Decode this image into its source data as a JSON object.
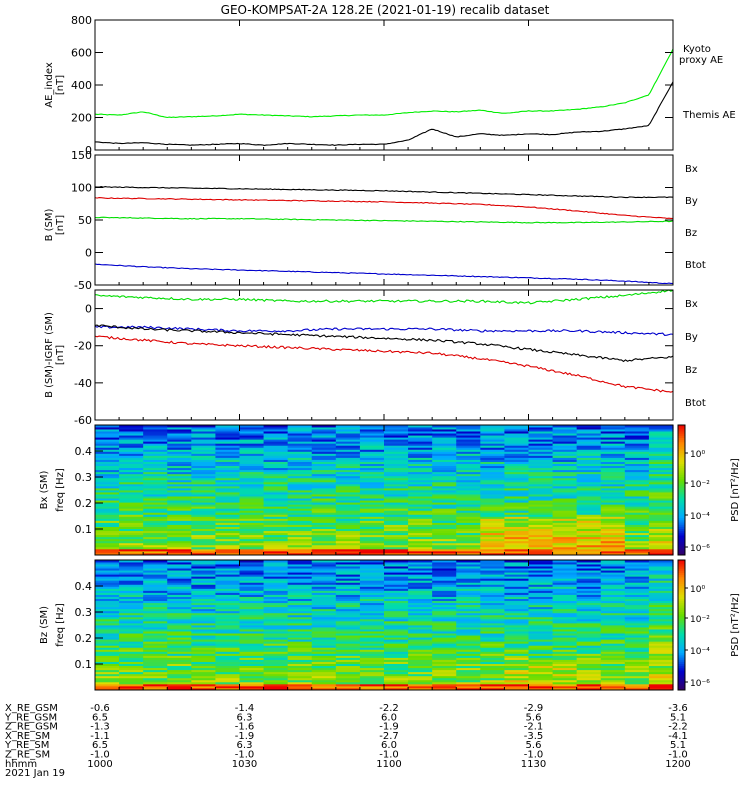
{
  "title": "GEO-KOMPSAT-2A 128.2E (2021-01-19) recalib dataset",
  "chart_data": [
    {
      "type": "line",
      "ylabel": [
        "AE_index",
        "[nT]"
      ],
      "ylim": [
        0,
        800
      ],
      "yticks": [
        "0",
        "200",
        "400",
        "600",
        "800"
      ],
      "x": [
        "1000",
        "1005",
        "1010",
        "1015",
        "1020",
        "1025",
        "1030",
        "1035",
        "1040",
        "1045",
        "1050",
        "1055",
        "1100",
        "1105",
        "1110",
        "1115",
        "1120",
        "1125",
        "1130",
        "1135",
        "1140",
        "1145",
        "1150",
        "1155",
        "1200"
      ],
      "series": [
        {
          "name": "Kyoto proxy AE",
          "color": "#00ee00",
          "values": [
            220,
            215,
            235,
            200,
            205,
            210,
            220,
            215,
            210,
            205,
            210,
            215,
            215,
            230,
            240,
            235,
            245,
            225,
            240,
            240,
            250,
            265,
            290,
            340,
            620
          ]
        },
        {
          "name": "Themis AE",
          "color": "#000000",
          "values": [
            50,
            40,
            45,
            35,
            30,
            35,
            40,
            30,
            40,
            35,
            30,
            35,
            35,
            60,
            130,
            80,
            100,
            90,
            100,
            95,
            110,
            115,
            130,
            150,
            420
          ]
        }
      ]
    },
    {
      "type": "line",
      "ylabel": [
        "B (SM)",
        "[nT]"
      ],
      "ylim": [
        -50,
        150
      ],
      "yticks": [
        "-50",
        "0",
        "50",
        "100",
        "150"
      ],
      "x": [
        "1000",
        "1010",
        "1020",
        "1030",
        "1040",
        "1050",
        "1100",
        "1110",
        "1120",
        "1130",
        "1140",
        "1150",
        "1200"
      ],
      "series": [
        {
          "name": "Bx",
          "color": "#0000cc",
          "values": [
            -18,
            -22,
            -25,
            -27,
            -29,
            -31,
            -33,
            -35,
            -37,
            -39,
            -41,
            -44,
            -48
          ]
        },
        {
          "name": "By",
          "color": "#00dd00",
          "values": [
            54,
            53,
            52,
            52,
            51,
            50,
            49,
            48,
            47,
            46,
            46,
            47,
            48
          ]
        },
        {
          "name": "Bz",
          "color": "#dd0000",
          "values": [
            84,
            83,
            82,
            81,
            80,
            79,
            78,
            76,
            74,
            70,
            64,
            57,
            52
          ]
        },
        {
          "name": "Btot",
          "color": "#000000",
          "values": [
            101,
            100,
            99,
            98,
            97,
            96,
            95,
            93,
            91,
            89,
            87,
            85,
            85
          ]
        }
      ]
    },
    {
      "type": "line",
      "ylabel": [
        "B (SM)-IGRF (SM)",
        "[nT]"
      ],
      "ylim": [
        -60,
        10
      ],
      "yticks": [
        "-60",
        "-40",
        "-20",
        "0"
      ],
      "x": [
        "1000",
        "1010",
        "1020",
        "1030",
        "1040",
        "1050",
        "1100",
        "1110",
        "1120",
        "1130",
        "1140",
        "1150",
        "1200"
      ],
      "series": [
        {
          "name": "Bx",
          "color": "#0000cc",
          "values": [
            -10,
            -10,
            -11,
            -12,
            -12,
            -11,
            -11,
            -11,
            -12,
            -12,
            -12,
            -13,
            -14
          ]
        },
        {
          "name": "By",
          "color": "#00dd00",
          "values": [
            7,
            6,
            5,
            5,
            4,
            4,
            4,
            4,
            4,
            3,
            5,
            7,
            10
          ]
        },
        {
          "name": "Bz",
          "color": "#dd0000",
          "values": [
            -15,
            -17,
            -19,
            -20,
            -21,
            -22,
            -23,
            -24,
            -27,
            -31,
            -36,
            -42,
            -45
          ]
        },
        {
          "name": "Btot",
          "color": "#000000",
          "values": [
            -9,
            -11,
            -12,
            -13,
            -14,
            -15,
            -16,
            -17,
            -19,
            -22,
            -25,
            -28,
            -26
          ]
        }
      ]
    },
    {
      "type": "heatmap",
      "ylabel": [
        "Bx (SM)",
        "freq [Hz]"
      ],
      "ylim": [
        0,
        0.5
      ],
      "yticks": [
        "0.1",
        "0.2",
        "0.3",
        "0.4"
      ],
      "colorbar_label": "PSD [nT²/Hz]",
      "colorbar_ticks": [
        "10⁰",
        "10⁻²",
        "10⁻⁴",
        "10⁻⁶"
      ],
      "colorscale": [
        "#330066",
        "#0000cc",
        "#00aaff",
        "#00ddaa",
        "#66dd00",
        "#dddd00",
        "#ff8800",
        "#ee0000"
      ]
    },
    {
      "type": "heatmap",
      "ylabel": [
        "Bz (SM)",
        "freq [Hz]"
      ],
      "ylim": [
        0,
        0.5
      ],
      "yticks": [
        "0.1",
        "0.2",
        "0.3",
        "0.4"
      ],
      "colorbar_label": "PSD [nT²/Hz]",
      "colorbar_ticks": [
        "10⁰",
        "10⁻²",
        "10⁻⁴",
        "10⁻⁶"
      ],
      "colorscale": [
        "#330066",
        "#0000cc",
        "#00aaff",
        "#00ddaa",
        "#66dd00",
        "#dddd00",
        "#ff8800",
        "#ee0000"
      ]
    }
  ],
  "ephemeris": {
    "rows": [
      {
        "label": "X_RE_GSM",
        "values": [
          "-0.6",
          "-1.4",
          "-2.2",
          "-2.9",
          "-3.6"
        ]
      },
      {
        "label": "Y_RE_GSM",
        "values": [
          "6.5",
          "6.3",
          "6.0",
          "5.6",
          "5.1"
        ]
      },
      {
        "label": "Z_RE_GSM",
        "values": [
          "-1.3",
          "-1.6",
          "-1.9",
          "-2.1",
          "-2.2"
        ]
      },
      {
        "label": "X_RE_SM",
        "values": [
          "-1.1",
          "-1.9",
          "-2.7",
          "-3.5",
          "-4.1"
        ]
      },
      {
        "label": "Y_RE_SM",
        "values": [
          "6.5",
          "6.3",
          "6.0",
          "5.6",
          "5.1"
        ]
      },
      {
        "label": "Z_RE_SM",
        "values": [
          "-1.0",
          "-1.0",
          "-1.0",
          "-1.0",
          "-1.0"
        ]
      },
      {
        "label": "hhmm",
        "values": [
          "1000",
          "1030",
          "1100",
          "1130",
          "1200"
        ]
      }
    ],
    "date": "2021 Jan 19"
  }
}
